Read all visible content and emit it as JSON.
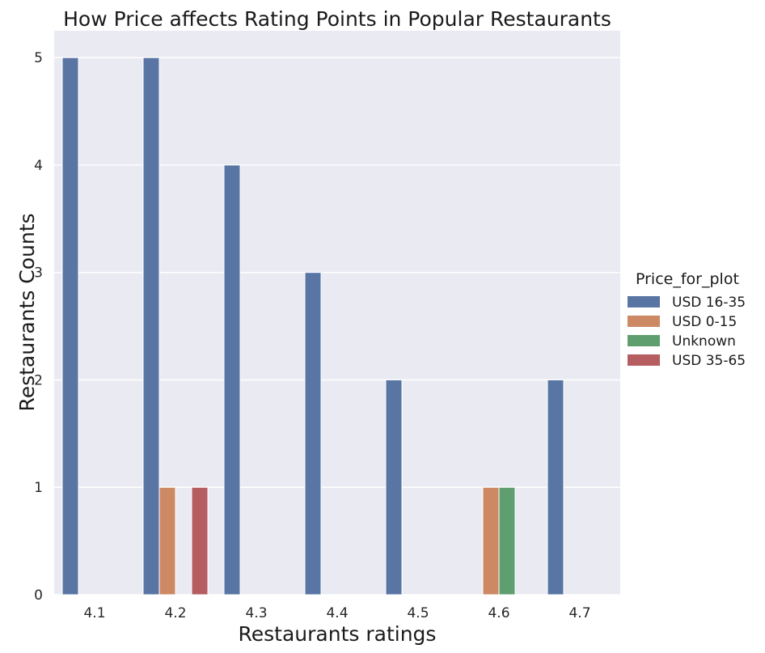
{
  "chart_data": {
    "type": "bar",
    "title": "How Price affects Rating Points in Popular Restaurants",
    "xlabel": "Restaurants ratings",
    "ylabel": "Restaurants Counts",
    "categories": [
      "4.1",
      "4.2",
      "4.3",
      "4.4",
      "4.5",
      "4.6",
      "4.7"
    ],
    "ylim": [
      0,
      5.25
    ],
    "yticks": [
      0,
      1,
      2,
      3,
      4,
      5
    ],
    "grid": true,
    "legend_title": "Price_for_plot",
    "legend_position": "right",
    "series": [
      {
        "name": "USD 16-35",
        "color": "#5975a4",
        "values": [
          5,
          5,
          4,
          3,
          2,
          0,
          2
        ]
      },
      {
        "name": "USD 0-15",
        "color": "#cc8963",
        "values": [
          0,
          1,
          0,
          0,
          0,
          1,
          0
        ]
      },
      {
        "name": "Unknown",
        "color": "#5f9e6e",
        "values": [
          0,
          0,
          0,
          0,
          0,
          1,
          0
        ]
      },
      {
        "name": "USD 35-65",
        "color": "#b55d60",
        "values": [
          0,
          1,
          0,
          0,
          0,
          0,
          0
        ]
      }
    ]
  }
}
